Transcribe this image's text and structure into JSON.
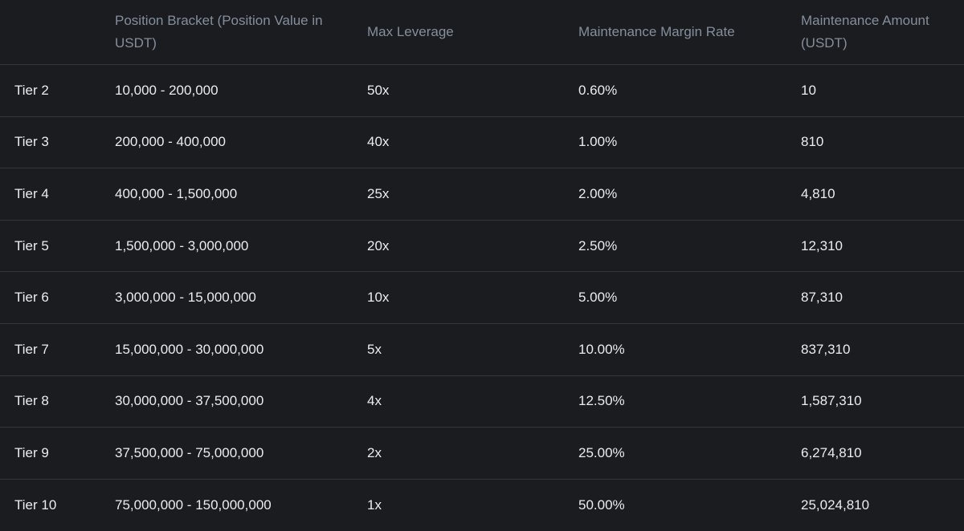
{
  "table": {
    "headers": {
      "tier": "",
      "position_bracket": "Position Bracket (Position Value in USDT)",
      "max_leverage": "Max Leverage",
      "maintenance_margin_rate": "Maintenance Margin Rate",
      "maintenance_amount": "Maintenance Amount (USDT)"
    },
    "rows": [
      {
        "tier": "Tier 2",
        "bracket": "10,000 - 200,000",
        "leverage": "50x",
        "mmr": "0.60%",
        "amount": "10"
      },
      {
        "tier": "Tier 3",
        "bracket": "200,000 - 400,000",
        "leverage": "40x",
        "mmr": "1.00%",
        "amount": "810"
      },
      {
        "tier": "Tier 4",
        "bracket": "400,000 - 1,500,000",
        "leverage": "25x",
        "mmr": "2.00%",
        "amount": "4,810"
      },
      {
        "tier": "Tier 5",
        "bracket": "1,500,000 - 3,000,000",
        "leverage": "20x",
        "mmr": "2.50%",
        "amount": "12,310"
      },
      {
        "tier": "Tier 6",
        "bracket": "3,000,000 - 15,000,000",
        "leverage": "10x",
        "mmr": "5.00%",
        "amount": "87,310"
      },
      {
        "tier": "Tier 7",
        "bracket": "15,000,000 - 30,000,000",
        "leverage": "5x",
        "mmr": "10.00%",
        "amount": "837,310"
      },
      {
        "tier": "Tier 8",
        "bracket": "30,000,000 - 37,500,000",
        "leverage": "4x",
        "mmr": "12.50%",
        "amount": "1,587,310"
      },
      {
        "tier": "Tier 9",
        "bracket": "37,500,000 - 75,000,000",
        "leverage": "2x",
        "mmr": "25.00%",
        "amount": "6,274,810"
      },
      {
        "tier": "Tier 10",
        "bracket": "75,000,000 - 150,000,000",
        "leverage": "1x",
        "mmr": "50.00%",
        "amount": "25,024,810"
      }
    ]
  },
  "colors": {
    "background": "#1b1c20",
    "header_text": "#848e9c",
    "body_text": "#eaecef",
    "divider": "#34363d"
  }
}
